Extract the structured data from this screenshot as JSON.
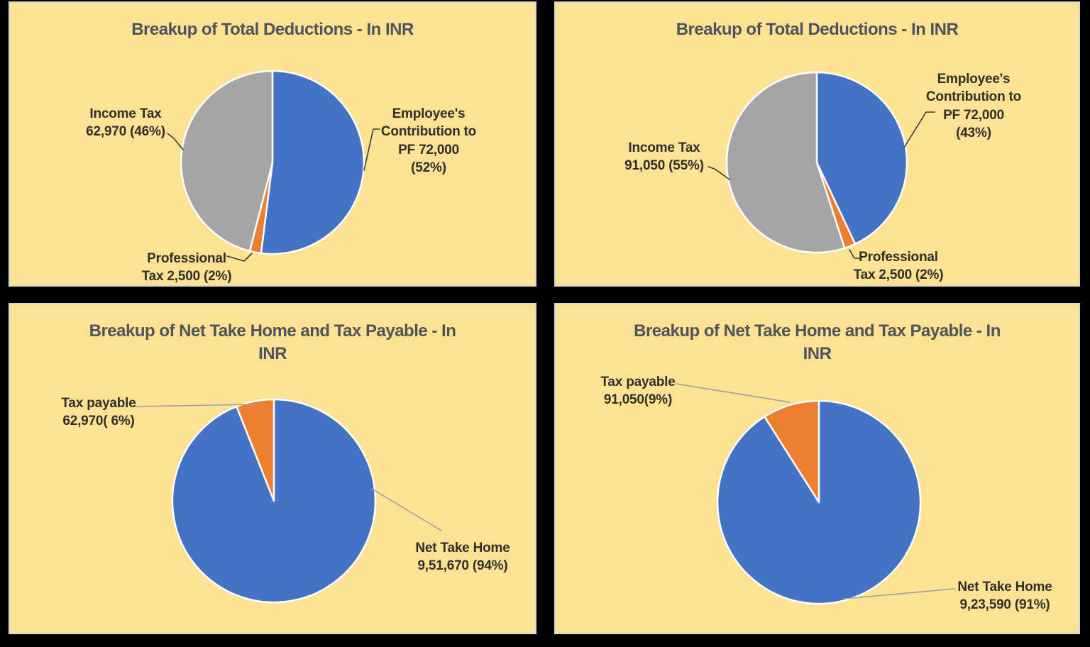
{
  "colors": {
    "canvas_background": "#000000",
    "panel_background": "#FDE293",
    "panel_border": "#D6D6D6",
    "title_text": "#4E545C",
    "label_text": "#2F2F2C",
    "accent_blue": "#4472C4",
    "accent_orange": "#ED7D31",
    "accent_gray": "#A5A5A5"
  },
  "chart_data": [
    {
      "type": "pie",
      "title": "Breakup of Total Deductions - In INR",
      "start_angle": 0,
      "direction": "clockwise",
      "slices": [
        {
          "key": "employees-pf",
          "name": "Employee's Contribution to PF",
          "value": 72000,
          "pct": 52,
          "color": "#4472C4"
        },
        {
          "key": "professional-tax",
          "name": "Professional Tax",
          "value": 2500,
          "pct": 2,
          "color": "#ED7D31"
        },
        {
          "key": "income-tax",
          "name": "Income Tax",
          "value": 62970,
          "pct": 46,
          "color": "#A5A5A5"
        }
      ]
    },
    {
      "type": "pie",
      "title": "Breakup of Total Deductions - In INR",
      "start_angle": 0,
      "direction": "clockwise",
      "slices": [
        {
          "key": "employees-pf",
          "name": "Employee's Contribution to PF",
          "value": 72000,
          "pct": 43,
          "color": "#4472C4"
        },
        {
          "key": "professional-tax",
          "name": "Professional Tax",
          "value": 2500,
          "pct": 2,
          "color": "#ED7D31"
        },
        {
          "key": "income-tax",
          "name": "Income Tax",
          "value": 91050,
          "pct": 55,
          "color": "#A5A5A5"
        }
      ]
    },
    {
      "type": "pie",
      "title": "Breakup of Net Take Home and Tax Payable - In INR",
      "start_angle": 0,
      "direction": "clockwise",
      "slices": [
        {
          "key": "net-take-home",
          "name": "Net Take Home",
          "value": 951670,
          "pct": 94,
          "color": "#4472C4"
        },
        {
          "key": "tax-payable",
          "name": "Tax payable",
          "value": 62970,
          "pct": 6,
          "color": "#ED7D31"
        }
      ]
    },
    {
      "type": "pie",
      "title": "Breakup of Net Take Home and Tax Payable - In INR",
      "start_angle": 0,
      "direction": "clockwise",
      "slices": [
        {
          "key": "net-take-home",
          "name": "Net Take Home",
          "value": 923590,
          "pct": 91,
          "color": "#4472C4"
        },
        {
          "key": "tax-payable",
          "name": "Tax payable",
          "value": 91050,
          "pct": 9,
          "color": "#ED7D31"
        }
      ]
    }
  ],
  "panels": [
    {
      "title_lines": [
        "Breakup of Total Deductions - In INR"
      ],
      "labels": {
        "income_tax": {
          "lines": [
            "Income Tax",
            "62,970 (46%)"
          ]
        },
        "employees_pf": {
          "lines": [
            "Employee's",
            "Contribution to",
            "PF 72,000",
            "(52%)"
          ]
        },
        "professional_tax": {
          "lines": [
            "Professional",
            "Tax 2,500 (2%)"
          ]
        }
      }
    },
    {
      "title_lines": [
        "Breakup of Total Deductions - In INR"
      ],
      "labels": {
        "income_tax": {
          "lines": [
            "Income Tax",
            "91,050 (55%)"
          ]
        },
        "employees_pf": {
          "lines": [
            "Employee's",
            "Contribution to",
            "PF 72,000",
            "(43%)"
          ]
        },
        "professional_tax": {
          "lines": [
            "Professional",
            "Tax 2,500 (2%)"
          ]
        }
      }
    },
    {
      "title_lines": [
        "Breakup of Net Take Home and Tax Payable - In",
        "INR"
      ],
      "labels": {
        "tax_payable": {
          "lines": [
            "Tax payable",
            "62,970( 6%)"
          ]
        },
        "net_take_home": {
          "lines": [
            "Net Take Home",
            "9,51,670 (94%)"
          ]
        }
      }
    },
    {
      "title_lines": [
        "Breakup of Net Take Home and Tax Payable - In",
        "INR"
      ],
      "labels": {
        "tax_payable": {
          "lines": [
            "Tax payable",
            "91,050(9%)"
          ]
        },
        "net_take_home": {
          "lines": [
            "Net Take Home",
            "9,23,590 (91%)"
          ]
        }
      }
    }
  ]
}
